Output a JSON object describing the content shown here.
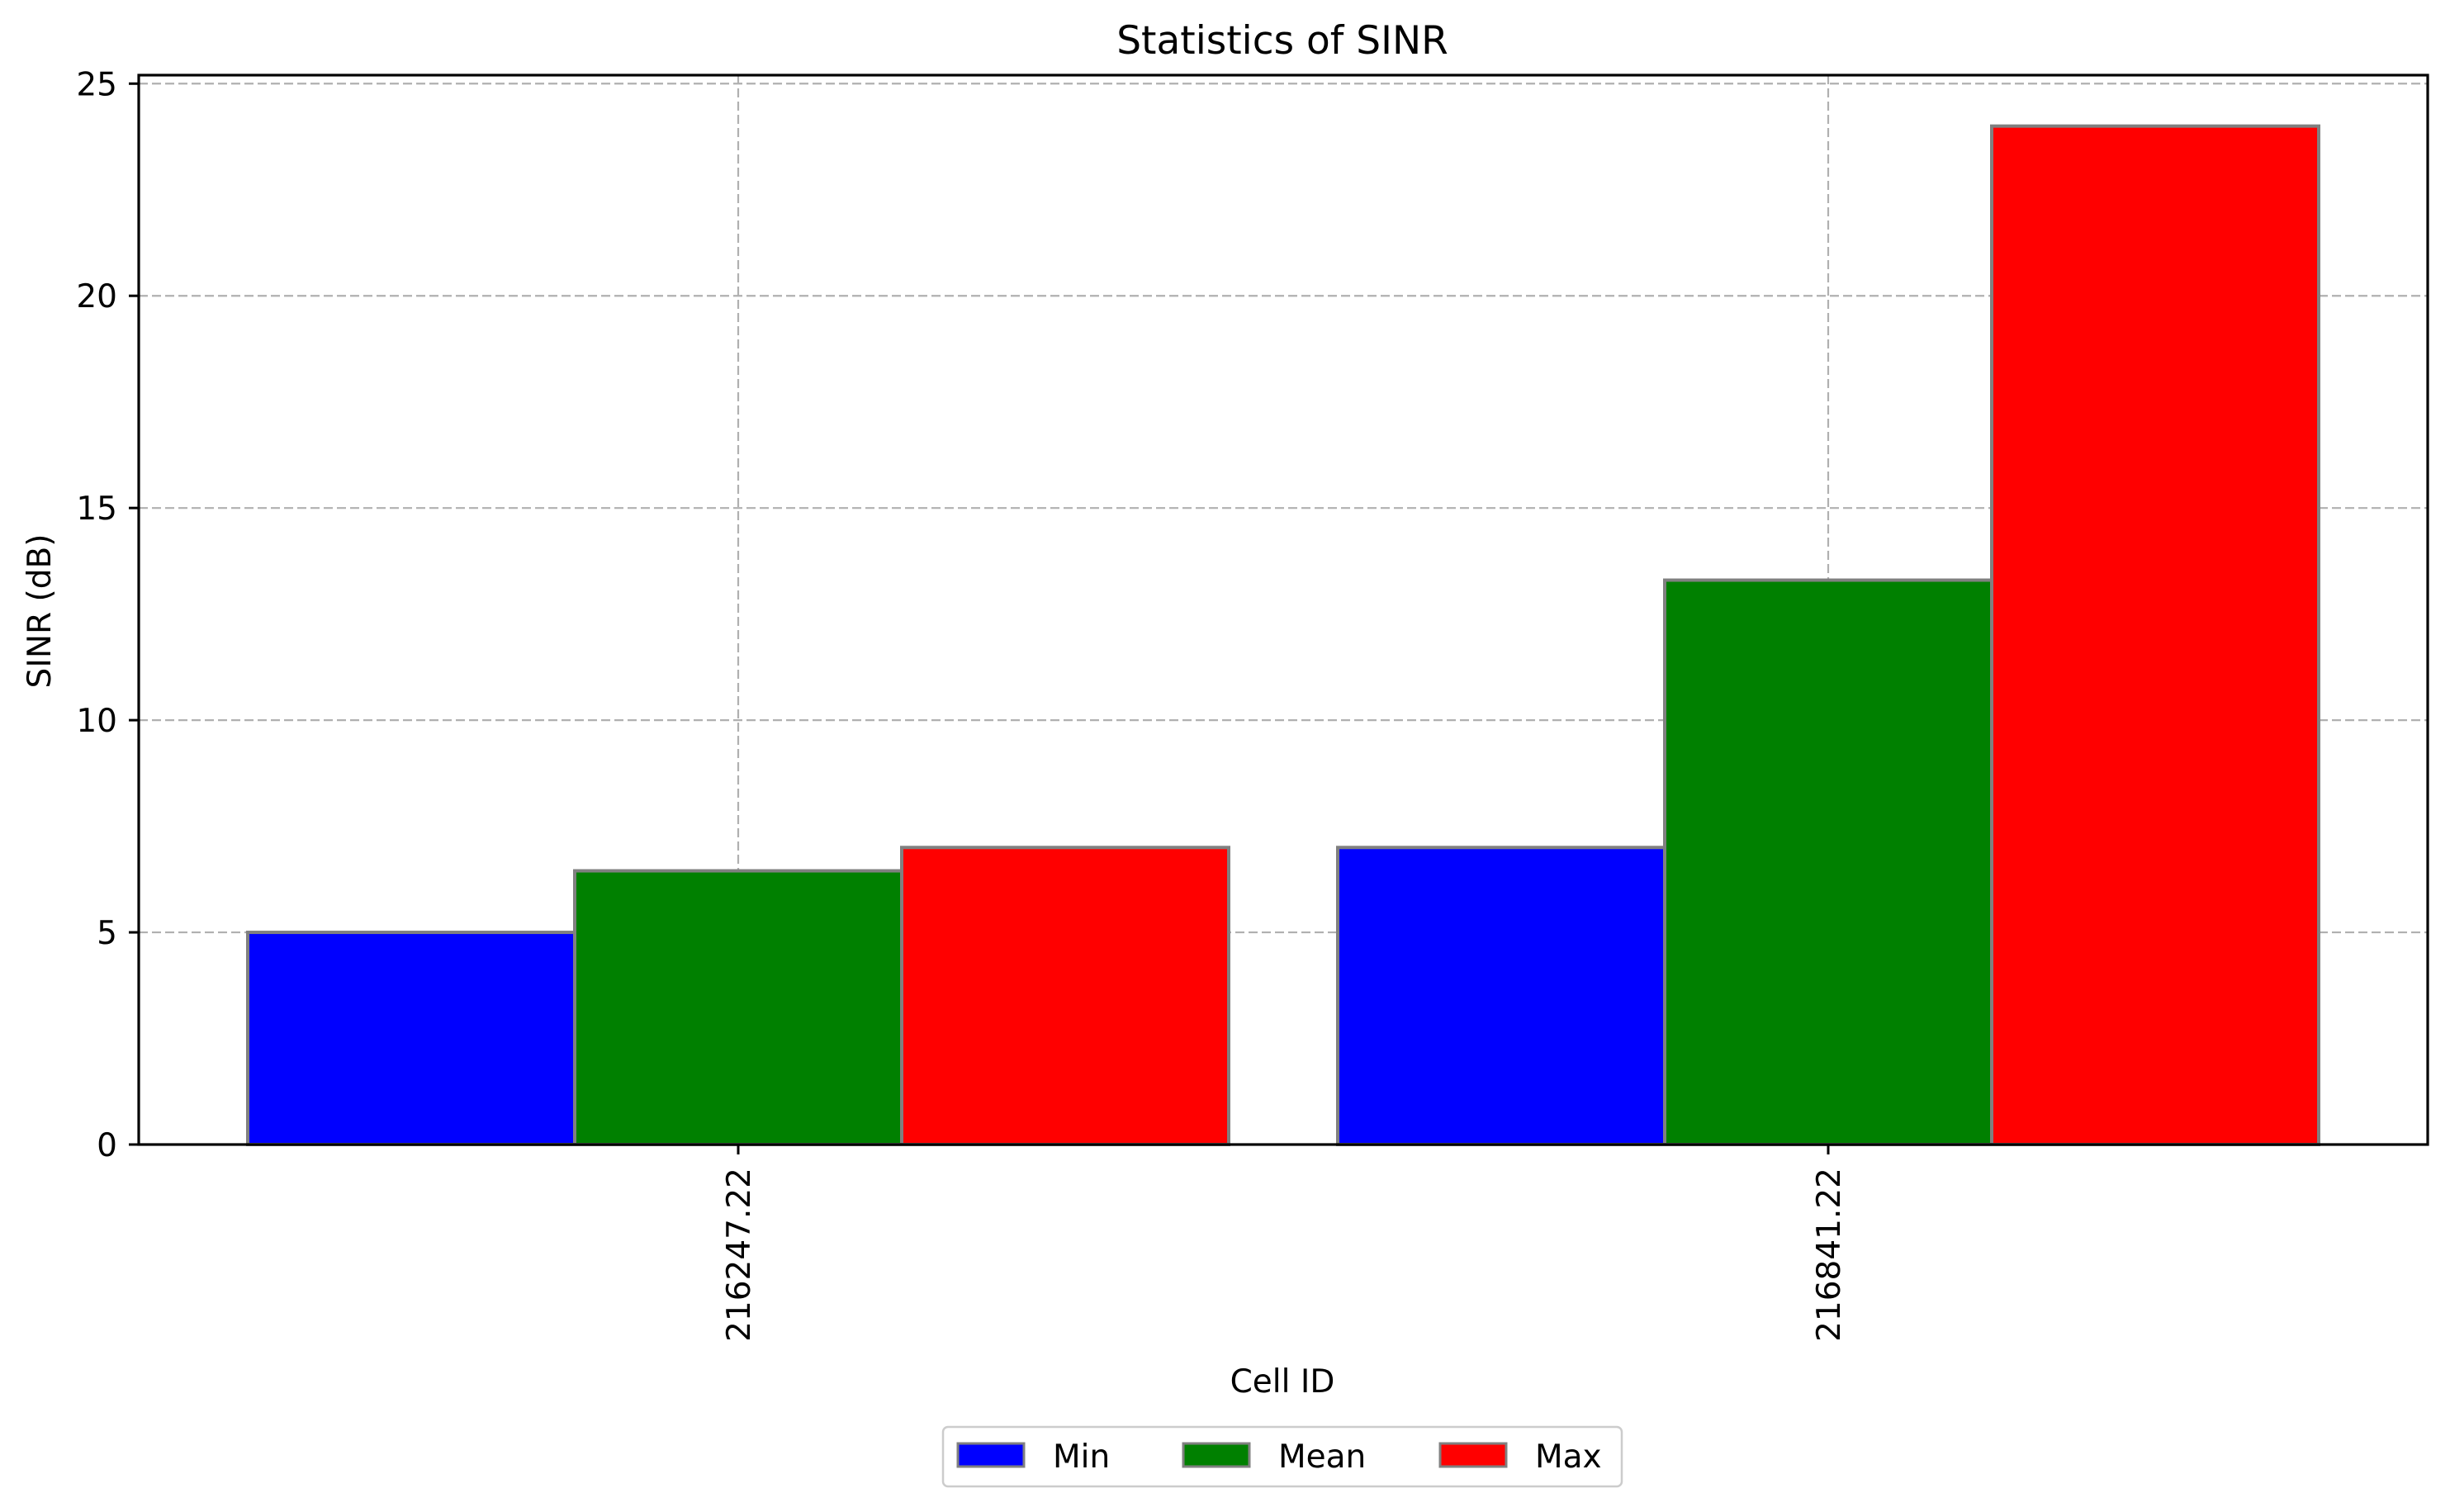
{
  "chart_data": {
    "type": "bar",
    "title": "Statistics of SINR",
    "xlabel": "Cell ID",
    "ylabel": "SINR (dB)",
    "categories": [
      "216247.22",
      "216841.22"
    ],
    "series": [
      {
        "name": "Min",
        "color": "#0000ff",
        "values": [
          5.0,
          7.0
        ]
      },
      {
        "name": "Mean",
        "color": "#008000",
        "values": [
          6.45,
          13.3
        ]
      },
      {
        "name": "Max",
        "color": "#ff0000",
        "values": [
          7.0,
          24.0
        ]
      }
    ],
    "ylim": [
      0,
      25.2
    ],
    "yticks": [
      "0",
      "5",
      "10",
      "15",
      "20",
      "25"
    ],
    "grid": true,
    "legend_position": "bottom-center",
    "x_tick_rotation": "vertical"
  }
}
